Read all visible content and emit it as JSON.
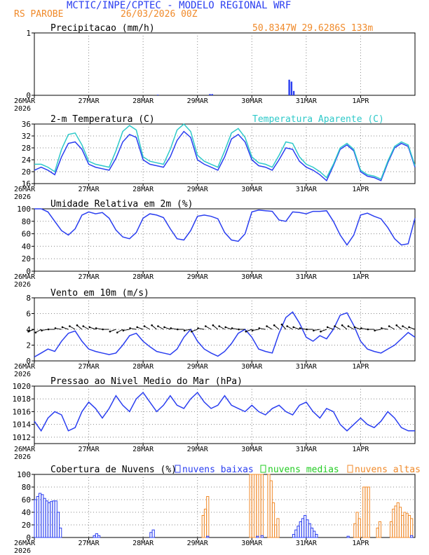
{
  "header": {
    "title": "MCTIC/INPE/CPTEC - MODELO REGIONAL WRF",
    "location": "RS PAROBE",
    "run": "26/03/2026 00Z",
    "coords": "50.8347W 29.6286S 133m"
  },
  "colors": {
    "blue": "#2a3ef0",
    "cyan": "#2ec9c9",
    "orange": "#f08a2a",
    "green": "#22cc22",
    "black": "#000000"
  },
  "chart_data": [
    {
      "id": "precip",
      "type": "bar",
      "title": "Precipitacao (mm/h)",
      "ylim": [
        0,
        1
      ],
      "yticks": [
        0,
        1
      ],
      "x_labels": [
        "26MAR",
        "27MAR",
        "28MAR",
        "29MAR",
        "30MAR",
        "31MAR",
        "1APR"
      ],
      "year_label": "2026",
      "bars": [
        {
          "t": 54.5,
          "v": 0.01
        },
        {
          "t": 77.5,
          "v": 0.02
        },
        {
          "t": 78.5,
          "v": 0.02
        },
        {
          "t": 112.5,
          "v": 0.25
        },
        {
          "t": 113.5,
          "v": 0.22
        },
        {
          "t": 114.5,
          "v": 0.07
        }
      ]
    },
    {
      "id": "temp",
      "type": "line",
      "title": "2-m Temperatura (C)",
      "ylim": [
        16,
        36
      ],
      "yticks": [
        16,
        20,
        24,
        28,
        32,
        36
      ],
      "x_labels": [
        "26MAR",
        "27MAR",
        "28MAR",
        "29MAR",
        "30MAR",
        "31MAR",
        "1APR"
      ],
      "year_label": "2026",
      "series": [
        {
          "name": "2-m Temperatura (C)",
          "color": "#2a3ef0",
          "x": [
            0,
            3,
            6,
            9,
            12,
            15,
            18,
            21,
            24,
            27,
            30,
            33,
            36,
            39,
            42,
            45,
            48,
            51,
            54,
            57,
            60,
            63,
            66,
            69,
            72,
            75,
            78,
            81,
            84,
            87,
            90,
            93,
            96,
            99,
            102,
            105,
            108,
            111,
            114,
            117,
            120,
            123,
            126,
            129,
            132,
            135,
            138,
            141,
            144,
            147,
            150,
            153,
            156,
            159,
            162,
            165,
            168
          ],
          "y": [
            20.5,
            21.5,
            20.5,
            19,
            25,
            29.5,
            30,
            27.5,
            22.5,
            21.5,
            21,
            20.5,
            24.5,
            30,
            32.5,
            31.5,
            24,
            22.5,
            22,
            21.5,
            25,
            30.5,
            33.5,
            31.5,
            24,
            22.5,
            21.5,
            20.5,
            25,
            31,
            32.5,
            30,
            24,
            22,
            21.5,
            20.5,
            24,
            28,
            27.5,
            23.5,
            21.5,
            20.5,
            19,
            17,
            22,
            27.5,
            29,
            27,
            20,
            18.5,
            18,
            17,
            23,
            28,
            29.5,
            28.5,
            21.5
          ]
        },
        {
          "name": "Temperatura Aparente (C)",
          "color": "#2ec9c9",
          "x": [
            0,
            3,
            6,
            9,
            12,
            15,
            18,
            21,
            24,
            27,
            30,
            33,
            36,
            39,
            42,
            45,
            48,
            51,
            54,
            57,
            60,
            63,
            66,
            69,
            72,
            75,
            78,
            81,
            84,
            87,
            90,
            93,
            96,
            99,
            102,
            105,
            108,
            111,
            114,
            117,
            120,
            123,
            126,
            129,
            132,
            135,
            138,
            141,
            144,
            147,
            150,
            153,
            156,
            159,
            162,
            165,
            168
          ],
          "y": [
            22.5,
            22.5,
            21.5,
            20,
            27.5,
            32.5,
            33,
            29,
            23.5,
            22.5,
            22,
            21.5,
            27,
            33.5,
            35.5,
            34,
            25,
            23.5,
            23,
            22.5,
            27.5,
            34,
            36,
            33.5,
            25.5,
            23.5,
            22.5,
            21.5,
            27,
            33,
            34.5,
            31.5,
            25,
            23,
            22.5,
            21.5,
            25.5,
            30,
            29.5,
            25,
            22.5,
            21.5,
            20,
            18,
            22.5,
            28,
            29.5,
            27.5,
            20.5,
            19,
            18.5,
            17.5,
            23.5,
            28.5,
            30,
            29,
            22
          ]
        }
      ]
    },
    {
      "id": "rh",
      "type": "line",
      "title": "Umidade Relativa em 2m (%)",
      "ylim": [
        0,
        100
      ],
      "yticks": [
        0,
        20,
        40,
        60,
        80,
        100
      ],
      "x_labels": [
        "26MAR",
        "27MAR",
        "28MAR",
        "29MAR",
        "30MAR",
        "31MAR",
        "1APR"
      ],
      "year_label": "2026",
      "series": [
        {
          "name": "Umidade Relativa em 2m (%)",
          "color": "#2a3ef0",
          "x": [
            0,
            3,
            6,
            9,
            12,
            15,
            18,
            21,
            24,
            27,
            30,
            33,
            36,
            39,
            42,
            45,
            48,
            51,
            54,
            57,
            60,
            63,
            66,
            69,
            72,
            75,
            78,
            81,
            84,
            87,
            90,
            93,
            96,
            99,
            102,
            105,
            108,
            111,
            114,
            117,
            120,
            123,
            126,
            129,
            132,
            135,
            138,
            141,
            144,
            147,
            150,
            153,
            156,
            159,
            162,
            165,
            168
          ],
          "y": [
            100,
            100,
            95,
            80,
            65,
            58,
            68,
            90,
            95,
            92,
            94,
            85,
            66,
            55,
            52,
            62,
            85,
            92,
            90,
            86,
            68,
            52,
            50,
            65,
            88,
            90,
            88,
            84,
            62,
            50,
            48,
            60,
            95,
            98,
            97,
            96,
            82,
            80,
            95,
            94,
            92,
            96,
            96,
            97,
            80,
            58,
            42,
            58,
            90,
            93,
            88,
            84,
            70,
            52,
            42,
            44,
            85
          ]
        }
      ]
    },
    {
      "id": "wind",
      "type": "line",
      "title": "Vento em 10m (m/s)",
      "ylim": [
        0,
        8
      ],
      "yticks": [
        0,
        2,
        4,
        6,
        8
      ],
      "x_labels": [
        "26MAR",
        "27MAR",
        "28MAR",
        "29MAR",
        "30MAR",
        "31MAR",
        "1APR"
      ],
      "year_label": "2026",
      "barbs_note": "Direction arrows plotted along y=4",
      "series": [
        {
          "name": "Vento em 10m (m/s)",
          "color": "#2a3ef0",
          "x": [
            0,
            3,
            6,
            9,
            12,
            15,
            18,
            21,
            24,
            27,
            30,
            33,
            36,
            39,
            42,
            45,
            48,
            51,
            54,
            57,
            60,
            63,
            66,
            69,
            72,
            75,
            78,
            81,
            84,
            87,
            90,
            93,
            96,
            99,
            102,
            105,
            108,
            111,
            114,
            117,
            120,
            123,
            126,
            129,
            132,
            135,
            138,
            141,
            144,
            147,
            150,
            153,
            156,
            159,
            162,
            165,
            168
          ],
          "y": [
            0.5,
            1,
            1.5,
            1.2,
            2.5,
            3.5,
            3.8,
            2.5,
            1.5,
            1.2,
            1,
            0.8,
            1,
            2,
            3.2,
            3.5,
            2.5,
            1.8,
            1.2,
            1,
            0.8,
            1.5,
            3,
            4,
            2.5,
            1.5,
            1,
            0.6,
            1.2,
            2.2,
            3.5,
            4,
            3,
            1.5,
            1.2,
            1,
            3.5,
            5.5,
            6.2,
            4.8,
            3,
            2.5,
            3.2,
            2.8,
            4,
            5.8,
            6.1,
            4.5,
            2.5,
            1.5,
            1.2,
            1,
            1.5,
            2,
            2.8,
            3.6,
            3
          ]
        }
      ],
      "arrow_directions_deg": [
        200,
        210,
        190,
        180,
        170,
        160,
        150,
        140,
        150,
        160,
        170,
        180,
        200,
        210,
        190,
        170,
        160,
        150,
        140,
        150,
        160,
        170,
        180,
        190,
        200,
        170,
        150,
        140,
        150,
        160,
        170,
        180,
        200,
        190,
        170,
        150,
        140,
        130,
        150,
        160,
        170,
        180,
        190,
        200,
        160,
        150,
        140,
        150,
        160,
        170,
        180,
        190,
        170,
        150,
        140,
        150,
        160
      ]
    },
    {
      "id": "press",
      "type": "line",
      "title": "Pressao ao Nivel Medio do Mar (hPa)",
      "ylim": [
        1011,
        1020
      ],
      "yticks": [
        1012,
        1014,
        1016,
        1018,
        1020
      ],
      "x_labels": [
        "26MAR",
        "27MAR",
        "28MAR",
        "29MAR",
        "30MAR",
        "31MAR",
        "1APR"
      ],
      "year_label": "2026",
      "series": [
        {
          "name": "Pressao ao Nivel Medio do Mar (hPa)",
          "color": "#2a3ef0",
          "x": [
            0,
            3,
            6,
            9,
            12,
            15,
            18,
            21,
            24,
            27,
            30,
            33,
            36,
            39,
            42,
            45,
            48,
            51,
            54,
            57,
            60,
            63,
            66,
            69,
            72,
            75,
            78,
            81,
            84,
            87,
            90,
            93,
            96,
            99,
            102,
            105,
            108,
            111,
            114,
            117,
            120,
            123,
            126,
            129,
            132,
            135,
            138,
            141,
            144,
            147,
            150,
            153,
            156,
            159,
            162,
            165,
            168
          ],
          "y": [
            1014.5,
            1013,
            1015,
            1016,
            1015.5,
            1013,
            1013.5,
            1016,
            1017.5,
            1016.5,
            1015,
            1016.5,
            1018.5,
            1017,
            1016,
            1018,
            1019,
            1017.5,
            1016,
            1017,
            1018.5,
            1017,
            1016.5,
            1018,
            1019,
            1017.5,
            1016.5,
            1017,
            1018.5,
            1017,
            1016.5,
            1016,
            1017,
            1016,
            1015.5,
            1016.5,
            1017,
            1016,
            1015.5,
            1017,
            1017.5,
            1016,
            1015,
            1016.5,
            1016,
            1014,
            1013,
            1014,
            1015,
            1014,
            1013.5,
            1014.5,
            1016,
            1015,
            1013.5,
            1013,
            1013
          ]
        }
      ]
    },
    {
      "id": "clouds",
      "type": "bar",
      "title": "Cobertura de Nuvens (%)",
      "ylim": [
        0,
        100
      ],
      "yticks": [
        0,
        20,
        40,
        60,
        80,
        100
      ],
      "x_labels": [
        "26MAR",
        "27MAR",
        "28MAR",
        "29MAR",
        "30MAR",
        "31MAR",
        "1APR"
      ],
      "year_label": "2026",
      "legend": [
        {
          "label": "nuvens baixas",
          "color": "#2a3ef0"
        },
        {
          "label": "nuvens medias",
          "color": "#22cc22"
        },
        {
          "label": "nuvens altas",
          "color": "#f08a2a"
        }
      ],
      "low": [
        {
          "t": 0.5,
          "v": 60
        },
        {
          "t": 1.5,
          "v": 65
        },
        {
          "t": 2.5,
          "v": 70
        },
        {
          "t": 3.5,
          "v": 68
        },
        {
          "t": 4.5,
          "v": 62
        },
        {
          "t": 5.5,
          "v": 58
        },
        {
          "t": 6.5,
          "v": 55
        },
        {
          "t": 7.5,
          "v": 57
        },
        {
          "t": 8.5,
          "v": 58
        },
        {
          "t": 9.5,
          "v": 58
        },
        {
          "t": 10.5,
          "v": 40
        },
        {
          "t": 11.5,
          "v": 15
        },
        {
          "t": 26.5,
          "v": 3
        },
        {
          "t": 27.5,
          "v": 6
        },
        {
          "t": 28.5,
          "v": 3
        },
        {
          "t": 51.5,
          "v": 8
        },
        {
          "t": 52.5,
          "v": 12
        },
        {
          "t": 76.5,
          "v": 2
        },
        {
          "t": 98.5,
          "v": 2
        },
        {
          "t": 100.5,
          "v": 3
        },
        {
          "t": 114.5,
          "v": 5
        },
        {
          "t": 115.5,
          "v": 12
        },
        {
          "t": 116.5,
          "v": 18
        },
        {
          "t": 117.5,
          "v": 25
        },
        {
          "t": 118.5,
          "v": 30
        },
        {
          "t": 119.5,
          "v": 35
        },
        {
          "t": 120.5,
          "v": 28
        },
        {
          "t": 121.5,
          "v": 22
        },
        {
          "t": 122.5,
          "v": 15
        },
        {
          "t": 123.5,
          "v": 10
        },
        {
          "t": 124.5,
          "v": 5
        },
        {
          "t": 138.5,
          "v": 2
        },
        {
          "t": 166.5,
          "v": 3
        }
      ],
      "high": [
        {
          "t": 74.5,
          "v": 35
        },
        {
          "t": 75.5,
          "v": 45
        },
        {
          "t": 76.5,
          "v": 65
        },
        {
          "t": 95.5,
          "v": 100
        },
        {
          "t": 96.5,
          "v": 100
        },
        {
          "t": 97.5,
          "v": 100
        },
        {
          "t": 98.5,
          "v": 100
        },
        {
          "t": 99.5,
          "v": 100
        },
        {
          "t": 100.5,
          "v": 100
        },
        {
          "t": 103.5,
          "v": 100
        },
        {
          "t": 104.5,
          "v": 90
        },
        {
          "t": 105.5,
          "v": 55
        },
        {
          "t": 106.5,
          "v": 20
        },
        {
          "t": 107.5,
          "v": 30
        },
        {
          "t": 141.5,
          "v": 22
        },
        {
          "t": 142.5,
          "v": 40
        },
        {
          "t": 143.5,
          "v": 30
        },
        {
          "t": 145.5,
          "v": 80
        },
        {
          "t": 146.5,
          "v": 80
        },
        {
          "t": 147.5,
          "v": 80
        },
        {
          "t": 151.5,
          "v": 15
        },
        {
          "t": 152.5,
          "v": 25
        },
        {
          "t": 157.5,
          "v": 25
        },
        {
          "t": 158.5,
          "v": 45
        },
        {
          "t": 159.5,
          "v": 50
        },
        {
          "t": 160.5,
          "v": 55
        },
        {
          "t": 161.5,
          "v": 48
        },
        {
          "t": 162.5,
          "v": 35
        },
        {
          "t": 163.5,
          "v": 40
        },
        {
          "t": 164.5,
          "v": 38
        },
        {
          "t": 165.5,
          "v": 35
        },
        {
          "t": 166.5,
          "v": 30
        }
      ]
    }
  ]
}
